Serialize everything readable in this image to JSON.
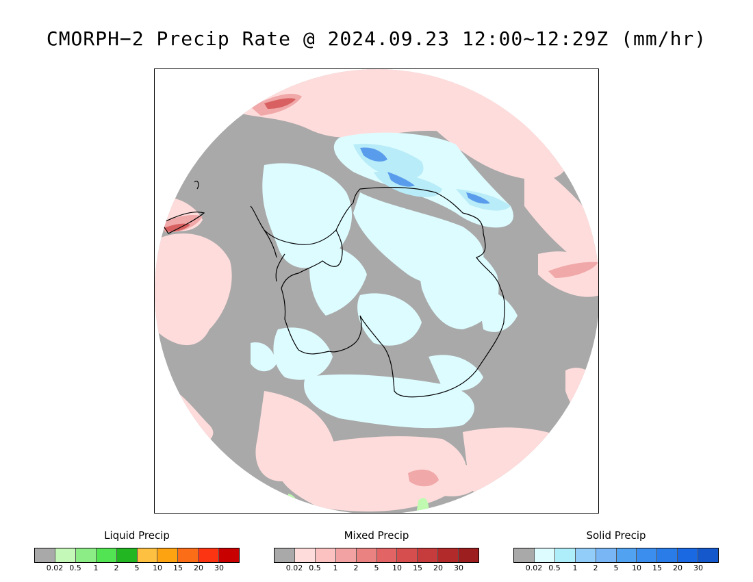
{
  "title": "CMORPH−2 Precip Rate @ 2024.09.23 12:00~12:29Z (mm/hr)",
  "map": {
    "projection": "south polar stereographic",
    "colors": {
      "no_precip": "#a9a9a9",
      "mixed_light": "#ffdcdc",
      "mixed_moderate": "#f0a8a8",
      "mixed_heavy": "#d86060",
      "solid_light": "#ddfcff",
      "solid_moderate": "#b8ecf8",
      "solid_heavy": "#7ab8f0",
      "solid_heavier": "#5a9cec",
      "liquid_light": "#c0fab0",
      "coastline": "#000000"
    }
  },
  "legends": [
    {
      "title": "Liquid Precip",
      "colors": [
        "#a9a9a9",
        "#c4f8b8",
        "#8ced86",
        "#52e452",
        "#22b622",
        "#fdc040",
        "#fda210",
        "#fc6d18",
        "#fc3412",
        "#c80000"
      ],
      "labels": [
        "0.02",
        "0.5",
        "1",
        "2",
        "5",
        "10",
        "15",
        "20",
        "30"
      ]
    },
    {
      "title": "Mixed Precip",
      "colors": [
        "#a9a9a9",
        "#ffdcdc",
        "#fcc2c2",
        "#f2a2a2",
        "#ea8282",
        "#e26464",
        "#d64e4e",
        "#c63c3c",
        "#b22a2a",
        "#9c1e1e"
      ],
      "labels": [
        "0.02",
        "0.5",
        "1",
        "2",
        "5",
        "10",
        "15",
        "20",
        "30"
      ]
    },
    {
      "title": "Solid Precip",
      "colors": [
        "#a9a9a9",
        "#ddfcff",
        "#aeeefa",
        "#92ccf8",
        "#78b6f6",
        "#52a2f2",
        "#3c8eee",
        "#2a7ce8",
        "#1a68e2",
        "#1458cc"
      ],
      "labels": [
        "0.02",
        "0.5",
        "1",
        "2",
        "5",
        "10",
        "15",
        "20",
        "30"
      ]
    }
  ]
}
